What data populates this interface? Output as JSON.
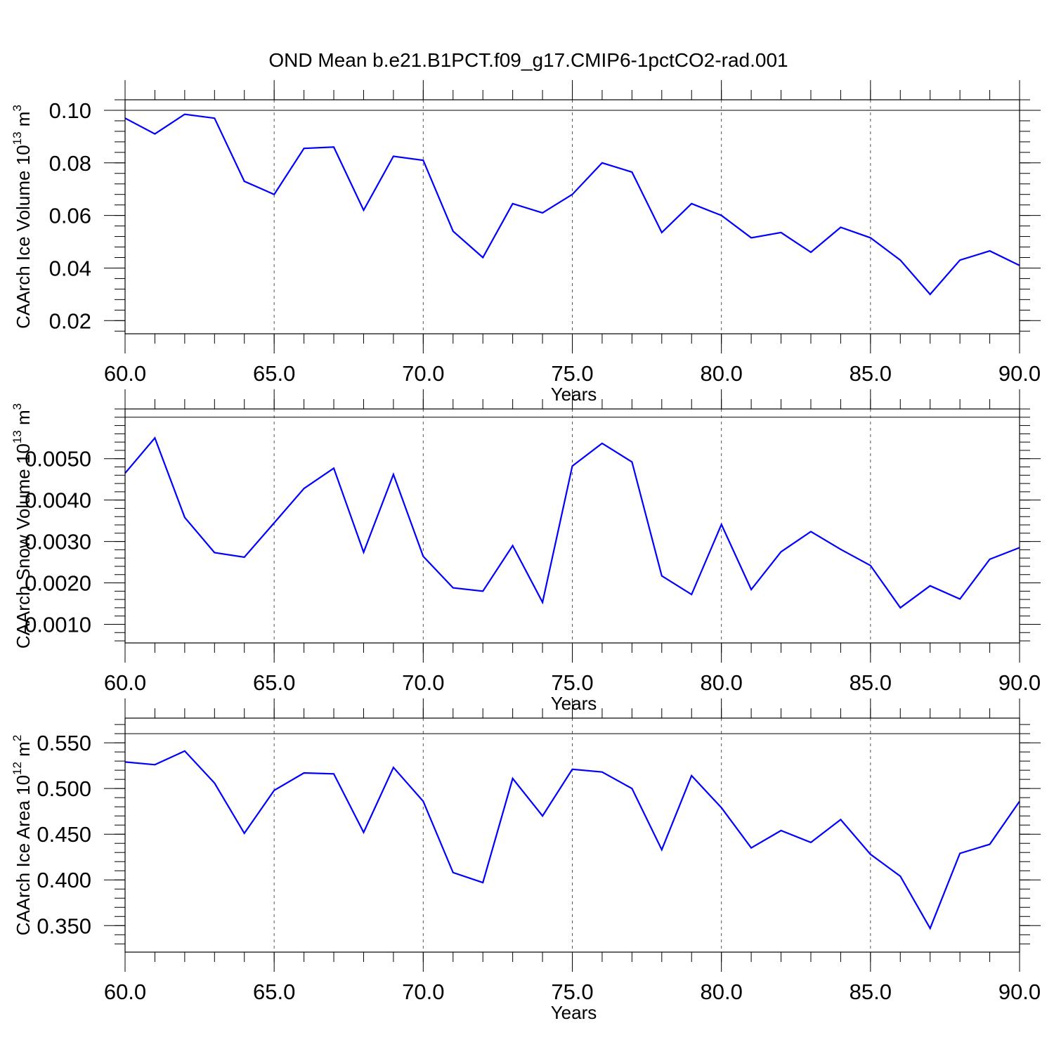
{
  "figure": {
    "title": "OND Mean b.e21.B1PCT.f09_g17.CMIP6-1pctCO2-rad.001"
  },
  "chart_data": [
    {
      "type": "line",
      "xlabel": "Years",
      "ylabel": "CAArch Ice Volume 10",
      "ylabel_exp": "13",
      "ylabel_unit": " m",
      "ylabel_unit_exp": "3",
      "xlim": [
        60,
        90
      ],
      "ylim": [
        0.015,
        0.104
      ],
      "x_ticks": [
        "60.0",
        "65.0",
        "70.0",
        "75.0",
        "80.0",
        "85.0",
        "90.0"
      ],
      "y_ticks": [
        {
          "value": 0.02,
          "label": "0.02"
        },
        {
          "value": 0.04,
          "label": "0.04"
        },
        {
          "value": 0.06,
          "label": "0.06"
        },
        {
          "value": 0.08,
          "label": "0.08"
        },
        {
          "value": 0.1,
          "label": "0.10"
        }
      ],
      "ref_line": 0.1,
      "grid": "dashed vertical at x ticks",
      "series_color": "#0000ff",
      "x": [
        60,
        61,
        62,
        63,
        64,
        65,
        66,
        67,
        68,
        69,
        70,
        71,
        72,
        73,
        74,
        75,
        76,
        77,
        78,
        79,
        80,
        81,
        82,
        83,
        84,
        85,
        86,
        87,
        88,
        89,
        90
      ],
      "y": [
        0.097,
        0.091,
        0.0985,
        0.097,
        0.073,
        0.068,
        0.0855,
        0.086,
        0.062,
        0.0825,
        0.081,
        0.054,
        0.044,
        0.0645,
        0.061,
        0.068,
        0.08,
        0.0765,
        0.0535,
        0.0645,
        0.06,
        0.0515,
        0.0535,
        0.046,
        0.0555,
        0.0515,
        0.043,
        0.03,
        0.043,
        0.0465,
        0.041
      ]
    },
    {
      "type": "line",
      "xlabel": "Years",
      "ylabel": "CAArch Snow Volume 10",
      "ylabel_exp": "13",
      "ylabel_unit": " m",
      "ylabel_unit_exp": "3",
      "xlim": [
        60,
        90
      ],
      "ylim": [
        0.00055,
        0.0062
      ],
      "x_ticks": [
        "60.0",
        "65.0",
        "70.0",
        "75.0",
        "80.0",
        "85.0",
        "90.0"
      ],
      "y_ticks": [
        {
          "value": 0.001,
          "label": "0.0010"
        },
        {
          "value": 0.002,
          "label": "0.0020"
        },
        {
          "value": 0.003,
          "label": "0.0030"
        },
        {
          "value": 0.004,
          "label": "0.0040"
        },
        {
          "value": 0.005,
          "label": "0.0050"
        }
      ],
      "ref_line": 0.006,
      "grid": "dashed vertical at x ticks",
      "series_color": "#0000ff",
      "x": [
        60,
        61,
        62,
        63,
        64,
        65,
        66,
        67,
        68,
        69,
        70,
        71,
        72,
        73,
        74,
        75,
        76,
        77,
        78,
        79,
        80,
        81,
        82,
        83,
        84,
        85,
        86,
        87,
        88,
        89,
        90
      ],
      "y": [
        0.00465,
        0.0055,
        0.00358,
        0.00273,
        0.00262,
        0.00345,
        0.00428,
        0.00477,
        0.00274,
        0.00462,
        0.00264,
        0.00188,
        0.0018,
        0.0029,
        0.00153,
        0.00482,
        0.00537,
        0.00492,
        0.00217,
        0.00172,
        0.00341,
        0.00184,
        0.00275,
        0.00324,
        0.00281,
        0.00242,
        0.0014,
        0.00193,
        0.00161,
        0.00257,
        0.00285
      ]
    },
    {
      "type": "line",
      "xlabel": "Years",
      "ylabel": "CAArch Ice Area 10",
      "ylabel_exp": "12",
      "ylabel_unit": " m",
      "ylabel_unit_exp": "2",
      "xlim": [
        60,
        90
      ],
      "ylim": [
        0.321,
        0.577
      ],
      "x_ticks": [
        "60.0",
        "65.0",
        "70.0",
        "75.0",
        "80.0",
        "85.0",
        "90.0"
      ],
      "y_ticks": [
        {
          "value": 0.35,
          "label": "0.350"
        },
        {
          "value": 0.4,
          "label": "0.400"
        },
        {
          "value": 0.45,
          "label": "0.450"
        },
        {
          "value": 0.5,
          "label": "0.500"
        },
        {
          "value": 0.55,
          "label": "0.550"
        }
      ],
      "ref_line": 0.56,
      "grid": "dashed vertical at x ticks",
      "series_color": "#0000ff",
      "x": [
        60,
        61,
        62,
        63,
        64,
        65,
        66,
        67,
        68,
        69,
        70,
        71,
        72,
        73,
        74,
        75,
        76,
        77,
        78,
        79,
        80,
        81,
        82,
        83,
        84,
        85,
        86,
        87,
        88,
        89,
        90
      ],
      "y": [
        0.529,
        0.526,
        0.541,
        0.506,
        0.451,
        0.498,
        0.517,
        0.516,
        0.452,
        0.523,
        0.486,
        0.408,
        0.397,
        0.511,
        0.47,
        0.521,
        0.518,
        0.5,
        0.433,
        0.514,
        0.479,
        0.435,
        0.454,
        0.441,
        0.466,
        0.428,
        0.404,
        0.347,
        0.429,
        0.439,
        0.486
      ]
    }
  ]
}
